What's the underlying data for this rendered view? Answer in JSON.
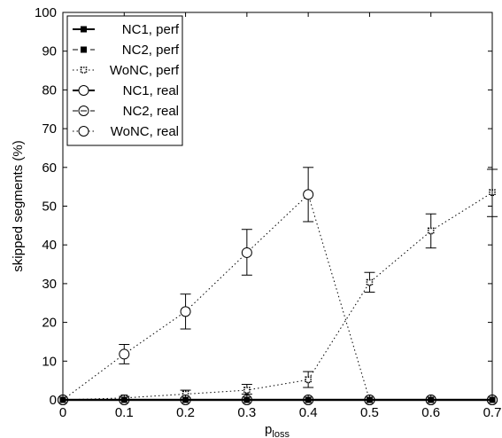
{
  "chart_data": {
    "type": "line",
    "title": "",
    "xlabel": "p",
    "xlabel_sub": "loss",
    "ylabel": "skipped segments (%)",
    "xlim": [
      0,
      0.7
    ],
    "ylim": [
      0,
      100
    ],
    "x_ticks": [
      "0",
      "0.1",
      "0.2",
      "0.3",
      "0.4",
      "0.5",
      "0.6",
      "0.7"
    ],
    "y_ticks": [
      "0",
      "10",
      "20",
      "30",
      "40",
      "50",
      "60",
      "70",
      "80",
      "90",
      "100"
    ],
    "grid": false,
    "legend_position": "top-left",
    "x": [
      0,
      0.1,
      0.2,
      0.3,
      0.4,
      0.5,
      0.6,
      0.7
    ],
    "series": [
      {
        "name": "NC1, perf",
        "line_style": "solid",
        "marker": "square-filled",
        "values": [
          0,
          0,
          0,
          0,
          0,
          0,
          0,
          0
        ]
      },
      {
        "name": "NC2, perf",
        "line_style": "dashed",
        "marker": "square-filled",
        "values": [
          0,
          0,
          0,
          0,
          0,
          0,
          0,
          0
        ]
      },
      {
        "name": "WoNC, perf",
        "line_style": "dotted",
        "marker": "square-dotted",
        "values": [
          0,
          0.5,
          1.5,
          2.5,
          5.2,
          30.3,
          43.6,
          53.5
        ],
        "err_low": [
          0,
          0.1,
          0.5,
          1.5,
          3.2,
          27.8,
          39.2,
          47.3
        ],
        "err_high": [
          0,
          0.9,
          2.5,
          4.0,
          7.3,
          32.9,
          48.0,
          59.5
        ]
      },
      {
        "name": "NC1, real",
        "line_style": "solid",
        "marker": "circle",
        "values": [
          0,
          0,
          0,
          0,
          0,
          0,
          0,
          0
        ]
      },
      {
        "name": "NC2, real",
        "line_style": "dashed",
        "marker": "circle-dash",
        "values": [
          0,
          0,
          0,
          0,
          0,
          0,
          0,
          0
        ]
      },
      {
        "name": "WoNC, real",
        "line_style": "dotted",
        "marker": "circle",
        "values": [
          0,
          11.8,
          22.8,
          38.0,
          53.0,
          0,
          0,
          0
        ],
        "err_low": [
          0,
          9.3,
          18.3,
          32.2,
          46.0,
          0,
          0,
          0
        ],
        "err_high": [
          0,
          14.3,
          27.3,
          44.0,
          60.0,
          0,
          0,
          0
        ]
      }
    ]
  }
}
